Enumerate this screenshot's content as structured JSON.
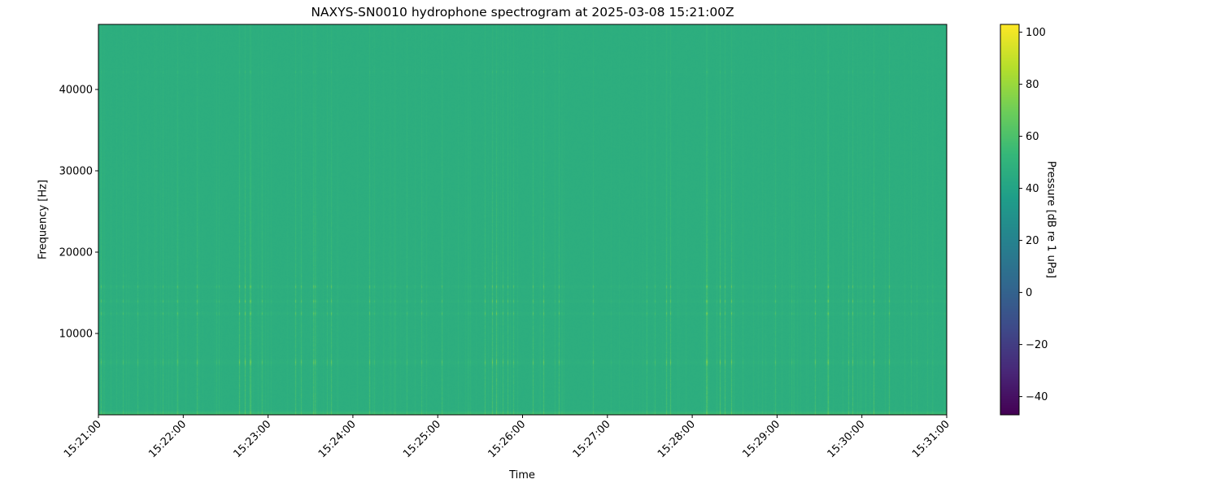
{
  "chart_data": {
    "type": "heatmap",
    "title": "NAXYS-SN0010 hydrophone spectrogram at 2025-03-08 15:21:00Z",
    "xlabel": "Time",
    "ylabel": "Frequency [Hz]",
    "colorbar_label": "Pressure [dB re 1 uPa]",
    "colormap": "viridis",
    "xlim": [
      "15:21:00",
      "15:31:00"
    ],
    "x_ticks": [
      "15:21:00",
      "15:22:00",
      "15:23:00",
      "15:24:00",
      "15:25:00",
      "15:26:00",
      "15:27:00",
      "15:28:00",
      "15:29:00",
      "15:30:00",
      "15:31:00"
    ],
    "ylim": [
      0,
      48000
    ],
    "y_ticks": [
      10000,
      20000,
      30000,
      40000
    ],
    "clim": [
      -47,
      103
    ],
    "c_ticks": [
      -40,
      -20,
      0,
      20,
      40,
      60,
      80,
      100
    ],
    "background_level_db": 47,
    "event_level_db": 70,
    "prominent_bands_hz": [
      6500,
      12500,
      14000,
      15800,
      42200
    ],
    "grid": false
  }
}
